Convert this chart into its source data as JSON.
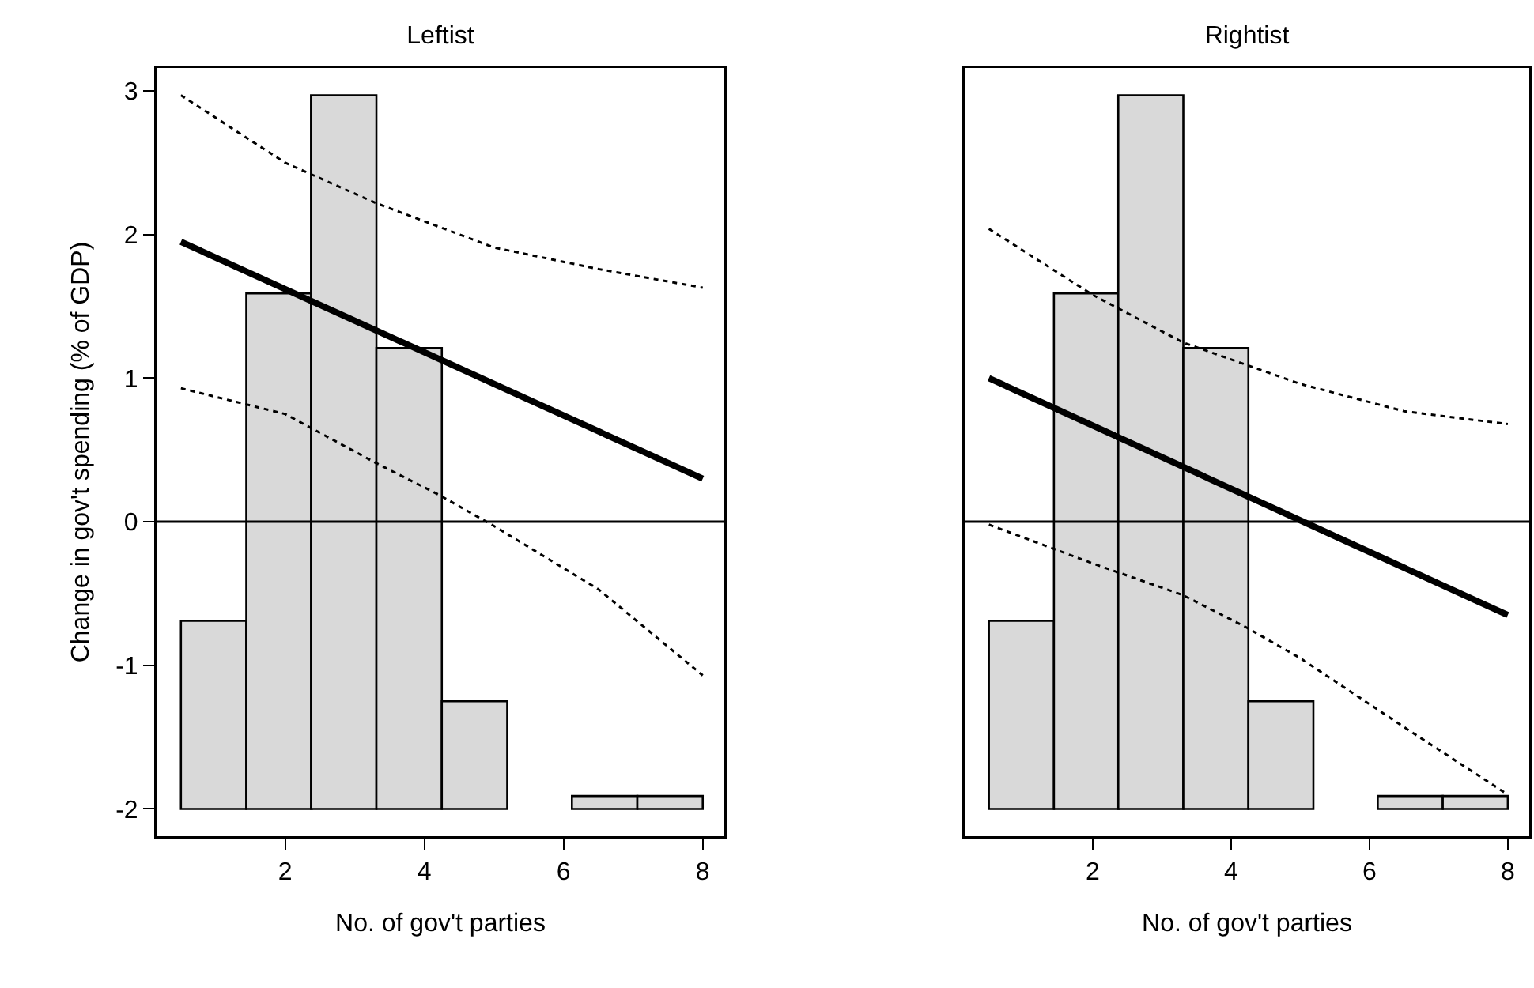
{
  "chart_data": [
    {
      "type": "bar",
      "title": "Leftist",
      "xlabel": "No. of gov't parties",
      "ylabel": "Change in gov't spending (% of GDP)",
      "xlim": [
        0.15,
        8.31
      ],
      "xticks": [
        2,
        4,
        6,
        8
      ],
      "ylim": [
        -2.19,
        3.16
      ],
      "yticks": [
        -2,
        -1,
        0,
        1,
        2,
        3
      ],
      "series": [
        {
          "color": "#d9d9d9",
          "x": [
            0.97,
            1.91,
            2.84,
            3.78,
            4.72,
            5.66,
            6.59,
            7.53
          ],
          "base": [
            -2,
            -2,
            -2,
            -2,
            -2,
            null,
            -2,
            -2
          ],
          "values": [
            1.31,
            3.59,
            4.97,
            3.21,
            0.75,
            null,
            0.09,
            0.09
          ]
        },
        {
          "type": "line",
          "color": "#000000",
          "line_style": "solid",
          "x": [
            0.5,
            8
          ],
          "values": [
            1.95,
            0.3
          ]
        },
        {
          "type": "line",
          "color": "#000000",
          "line_style": "dotted",
          "x": [
            0.5,
            2,
            3.3,
            5,
            6.5,
            8
          ],
          "values": [
            2.97,
            2.5,
            2.22,
            1.91,
            1.76,
            1.63
          ]
        },
        {
          "type": "line",
          "color": "#000000",
          "line_style": "dotted",
          "x": [
            0.5,
            2,
            3.3,
            4.2,
            5,
            6.5,
            8
          ],
          "values": [
            0.93,
            0.75,
            0.41,
            0.19,
            -0.03,
            -0.47,
            -1.07
          ]
        }
      ],
      "ref_lines": [
        {
          "axis": "y",
          "value": 0,
          "color": "#000000"
        }
      ]
    },
    {
      "type": "bar",
      "title": "Rightist",
      "xlabel": "No. of gov't parties",
      "xlim": [
        0.15,
        8.31
      ],
      "xticks": [
        2,
        4,
        6,
        8
      ],
      "ylim": [
        -2.19,
        3.16
      ],
      "tick_labels": "x",
      "series": [
        {
          "color": "#d9d9d9",
          "x": [
            0.97,
            1.91,
            2.84,
            3.78,
            4.72,
            5.66,
            6.59,
            7.53
          ],
          "base": [
            -2,
            -2,
            -2,
            -2,
            -2,
            null,
            -2,
            -2
          ],
          "values": [
            1.31,
            3.59,
            4.97,
            3.21,
            0.75,
            null,
            0.09,
            0.09
          ]
        },
        {
          "type": "line",
          "color": "#000000",
          "line_style": "solid",
          "x": [
            0.5,
            8
          ],
          "values": [
            1.0,
            -0.65
          ]
        },
        {
          "type": "line",
          "color": "#000000",
          "line_style": "dotted",
          "x": [
            0.5,
            2,
            3.3,
            5,
            6.5,
            8
          ],
          "values": [
            2.04,
            1.58,
            1.25,
            0.96,
            0.77,
            0.68
          ]
        },
        {
          "type": "line",
          "color": "#000000",
          "line_style": "dotted",
          "x": [
            0.5,
            2,
            3.3,
            4.2,
            5,
            6.5,
            8
          ],
          "values": [
            -0.02,
            -0.29,
            -0.51,
            -0.73,
            -0.95,
            -1.43,
            -1.9
          ]
        }
      ],
      "ref_lines": [
        {
          "axis": "y",
          "value": 0,
          "color": "#000000"
        }
      ]
    }
  ]
}
